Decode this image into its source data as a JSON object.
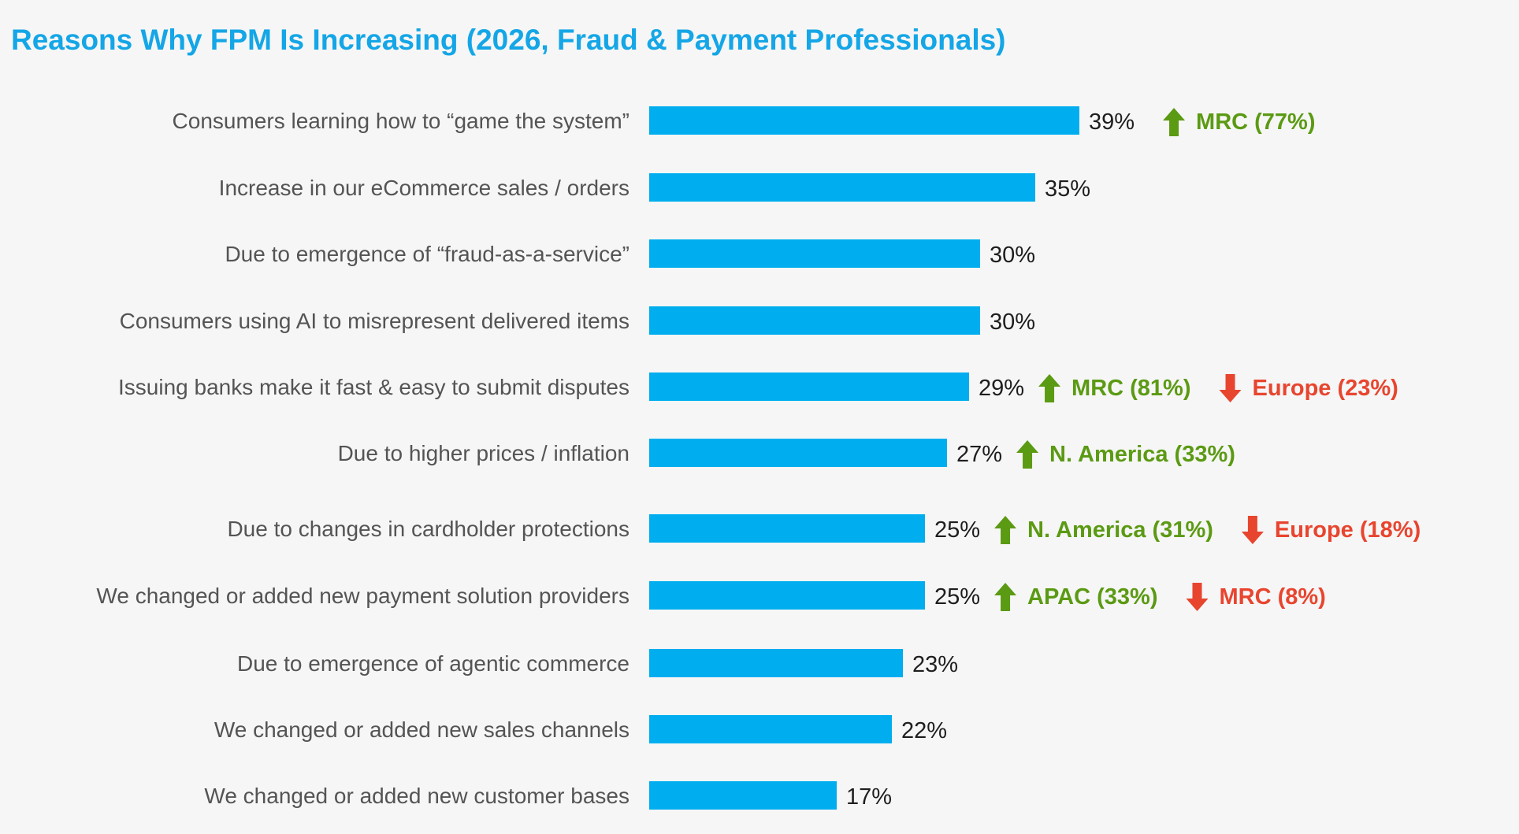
{
  "chart_data": {
    "type": "bar",
    "orientation": "horizontal",
    "title": "Reasons Why FPM Is Increasing (2026, Fraud & Payment Professionals)",
    "xlim": [
      0,
      100
    ],
    "grid": false,
    "colors": {
      "bar": "#00aeef",
      "up": "#5b9a13",
      "down": "#e8452f"
    },
    "categories": [
      "Consumers learning how to “game the system”",
      "Increase in our eCommerce sales / orders",
      "Due to emergence of “fraud-as-a-service”",
      "Consumers using AI to misrepresent delivered items",
      "Issuing banks make it fast & easy to submit disputes",
      "Due to higher prices / inflation",
      "Due to changes in cardholder protections",
      "We changed or added new payment solution providers",
      "Due to emergence of agentic commerce",
      "We changed or added new sales channels",
      "We changed or added new customer bases"
    ],
    "values": [
      39,
      35,
      30,
      30,
      29,
      27,
      25,
      25,
      23,
      22,
      17
    ],
    "value_labels": [
      "39%",
      "35%",
      "30%",
      "30%",
      "29%",
      "27%",
      "25%",
      "25%",
      "23%",
      "22%",
      "17%"
    ],
    "annotations": [
      {
        "row": 0,
        "direction": "up",
        "icon": "arrow-up-icon",
        "text": "MRC (77%)"
      },
      {
        "row": 4,
        "direction": "up",
        "icon": "arrow-up-icon",
        "text": "MRC (81%)"
      },
      {
        "row": 4,
        "direction": "down",
        "icon": "arrow-down-icon",
        "text": "Europe (23%)"
      },
      {
        "row": 5,
        "direction": "up",
        "icon": "arrow-up-icon",
        "text": "N. America (33%)"
      },
      {
        "row": 6,
        "direction": "up",
        "icon": "arrow-up-icon",
        "text": "N. America (31%)"
      },
      {
        "row": 6,
        "direction": "down",
        "icon": "arrow-down-icon",
        "text": "Europe (18%)"
      },
      {
        "row": 7,
        "direction": "up",
        "icon": "arrow-up-icon",
        "text": "APAC (33%)"
      },
      {
        "row": 7,
        "direction": "down",
        "icon": "arrow-down-icon",
        "text": "MRC (8%)"
      }
    ]
  }
}
